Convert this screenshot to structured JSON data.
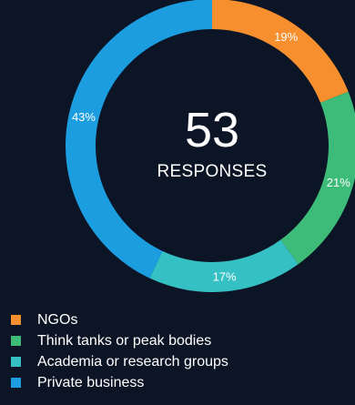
{
  "chart_data": {
    "type": "pie",
    "total": 53,
    "center_label": "RESPONSES",
    "series": [
      {
        "name": "NGOs",
        "value": 19,
        "label": "19%",
        "color": "#f78f2e"
      },
      {
        "name": "Think tanks or peak bodies",
        "value": 21,
        "label": "21%",
        "color": "#3dbb79"
      },
      {
        "name": "Academia or research groups",
        "value": 17,
        "label": "17%",
        "color": "#35c0c4"
      },
      {
        "name": "Private business",
        "value": 43,
        "label": "43%",
        "color": "#1b9de0"
      }
    ],
    "legend_position": "bottom-left"
  }
}
